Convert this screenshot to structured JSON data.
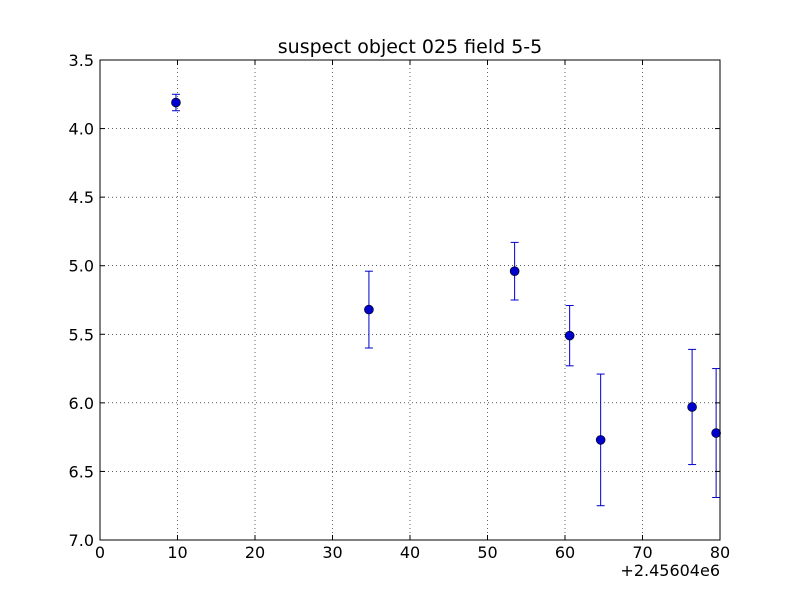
{
  "chart_data": {
    "type": "scatter",
    "title": "suspect object 025 field 5-5",
    "xlabel": "",
    "ylabel": "",
    "x_offset_label": "+2.45604e6",
    "xlim": [
      0,
      80
    ],
    "ylim": [
      3.5,
      7.0
    ],
    "y_inverted": true,
    "grid": true,
    "x_ticks": [
      "0",
      "10",
      "20",
      "30",
      "40",
      "50",
      "60",
      "70",
      "80"
    ],
    "y_ticks": [
      "3.5",
      "4.0",
      "4.5",
      "5.0",
      "5.5",
      "6.0",
      "6.5",
      "7.0"
    ],
    "series": [
      {
        "color": "#0000cc",
        "points": [
          {
            "x": 9.8,
            "y": 3.81,
            "err": 0.06
          },
          {
            "x": 34.7,
            "y": 5.32,
            "err": 0.28
          },
          {
            "x": 53.5,
            "y": 5.04,
            "err": 0.21
          },
          {
            "x": 60.6,
            "y": 5.51,
            "err": 0.22
          },
          {
            "x": 64.6,
            "y": 6.27,
            "err": 0.48
          },
          {
            "x": 76.4,
            "y": 6.03,
            "err": 0.42
          },
          {
            "x": 79.5,
            "y": 6.22,
            "err": 0.47
          }
        ]
      }
    ]
  }
}
